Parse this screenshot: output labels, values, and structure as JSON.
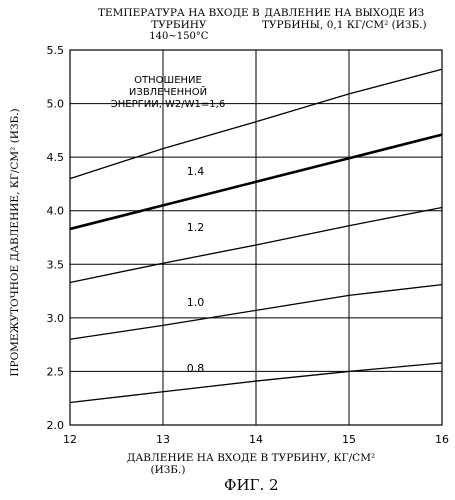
{
  "headers": {
    "left_line1": "ТЕМПЕРАТУРА НА ВХОДЕ В",
    "left_line2": "ТУРБИНУ",
    "left_line3": "140~150°C",
    "right_line1": "ДАВЛЕНИЕ НА ВЫХОДЕ ИЗ",
    "right_line2": "ТУРБИНЫ, 0,1 КГ/СМ² (ИЗБ.)"
  },
  "figure_caption": "ФИГ. 2",
  "chart_data": {
    "type": "line",
    "title": "",
    "xlabel_line1": "ДАВЛЕНИЕ НА ВХОДЕ В ТУРБИНУ, КГ/СМ²",
    "xlabel_line2": "(ИЗБ.)",
    "ylabel": "ПРОМЕЖУТОЧНОЕ ДАВЛЕНИЕ, КГ/СМ² (ИЗБ.)",
    "xlim": [
      12,
      16
    ],
    "ylim": [
      2.0,
      5.5
    ],
    "x_ticks": [
      "12",
      "13",
      "14",
      "15",
      "16"
    ],
    "y_ticks": [
      "2.0",
      "2.5",
      "3.0",
      "3.5",
      "4.0",
      "4.5",
      "5.0",
      "5.5"
    ],
    "grid": true,
    "curve_label_header_line1": "ОТНОШЕНИЕ",
    "curve_label_header_line2": "ИЗВЛЕЧЕННОЙ",
    "curve_label_header_line3": "ЭНЕРГИИ, W2/W1=1,6",
    "series": [
      {
        "name": "1,6",
        "x": [
          12,
          13,
          14,
          15,
          16
        ],
        "y": [
          4.3,
          4.58,
          4.83,
          5.09,
          5.32
        ],
        "bold": false
      },
      {
        "name": "1.4",
        "x": [
          12,
          13,
          14,
          15,
          16
        ],
        "y": [
          3.83,
          4.05,
          4.27,
          4.49,
          4.71
        ],
        "bold": true
      },
      {
        "name": "1.2",
        "x": [
          12,
          13,
          14,
          15,
          16
        ],
        "y": [
          3.33,
          3.51,
          3.68,
          3.86,
          4.03
        ],
        "bold": false
      },
      {
        "name": "1.0",
        "x": [
          12,
          13,
          14,
          15,
          16
        ],
        "y": [
          2.8,
          2.93,
          3.07,
          3.21,
          3.31
        ],
        "bold": false
      },
      {
        "name": "0.8",
        "x": [
          12,
          13,
          14,
          15,
          16
        ],
        "y": [
          2.21,
          2.31,
          2.41,
          2.5,
          2.58
        ],
        "bold": false
      }
    ],
    "curve_labels": [
      {
        "text": "1.4",
        "x": 13.35,
        "y": 4.37
      },
      {
        "text": "1.2",
        "x": 13.35,
        "y": 3.85
      },
      {
        "text": "1.0",
        "x": 13.35,
        "y": 3.15
      },
      {
        "text": "0.8",
        "x": 13.35,
        "y": 2.53
      }
    ]
  }
}
